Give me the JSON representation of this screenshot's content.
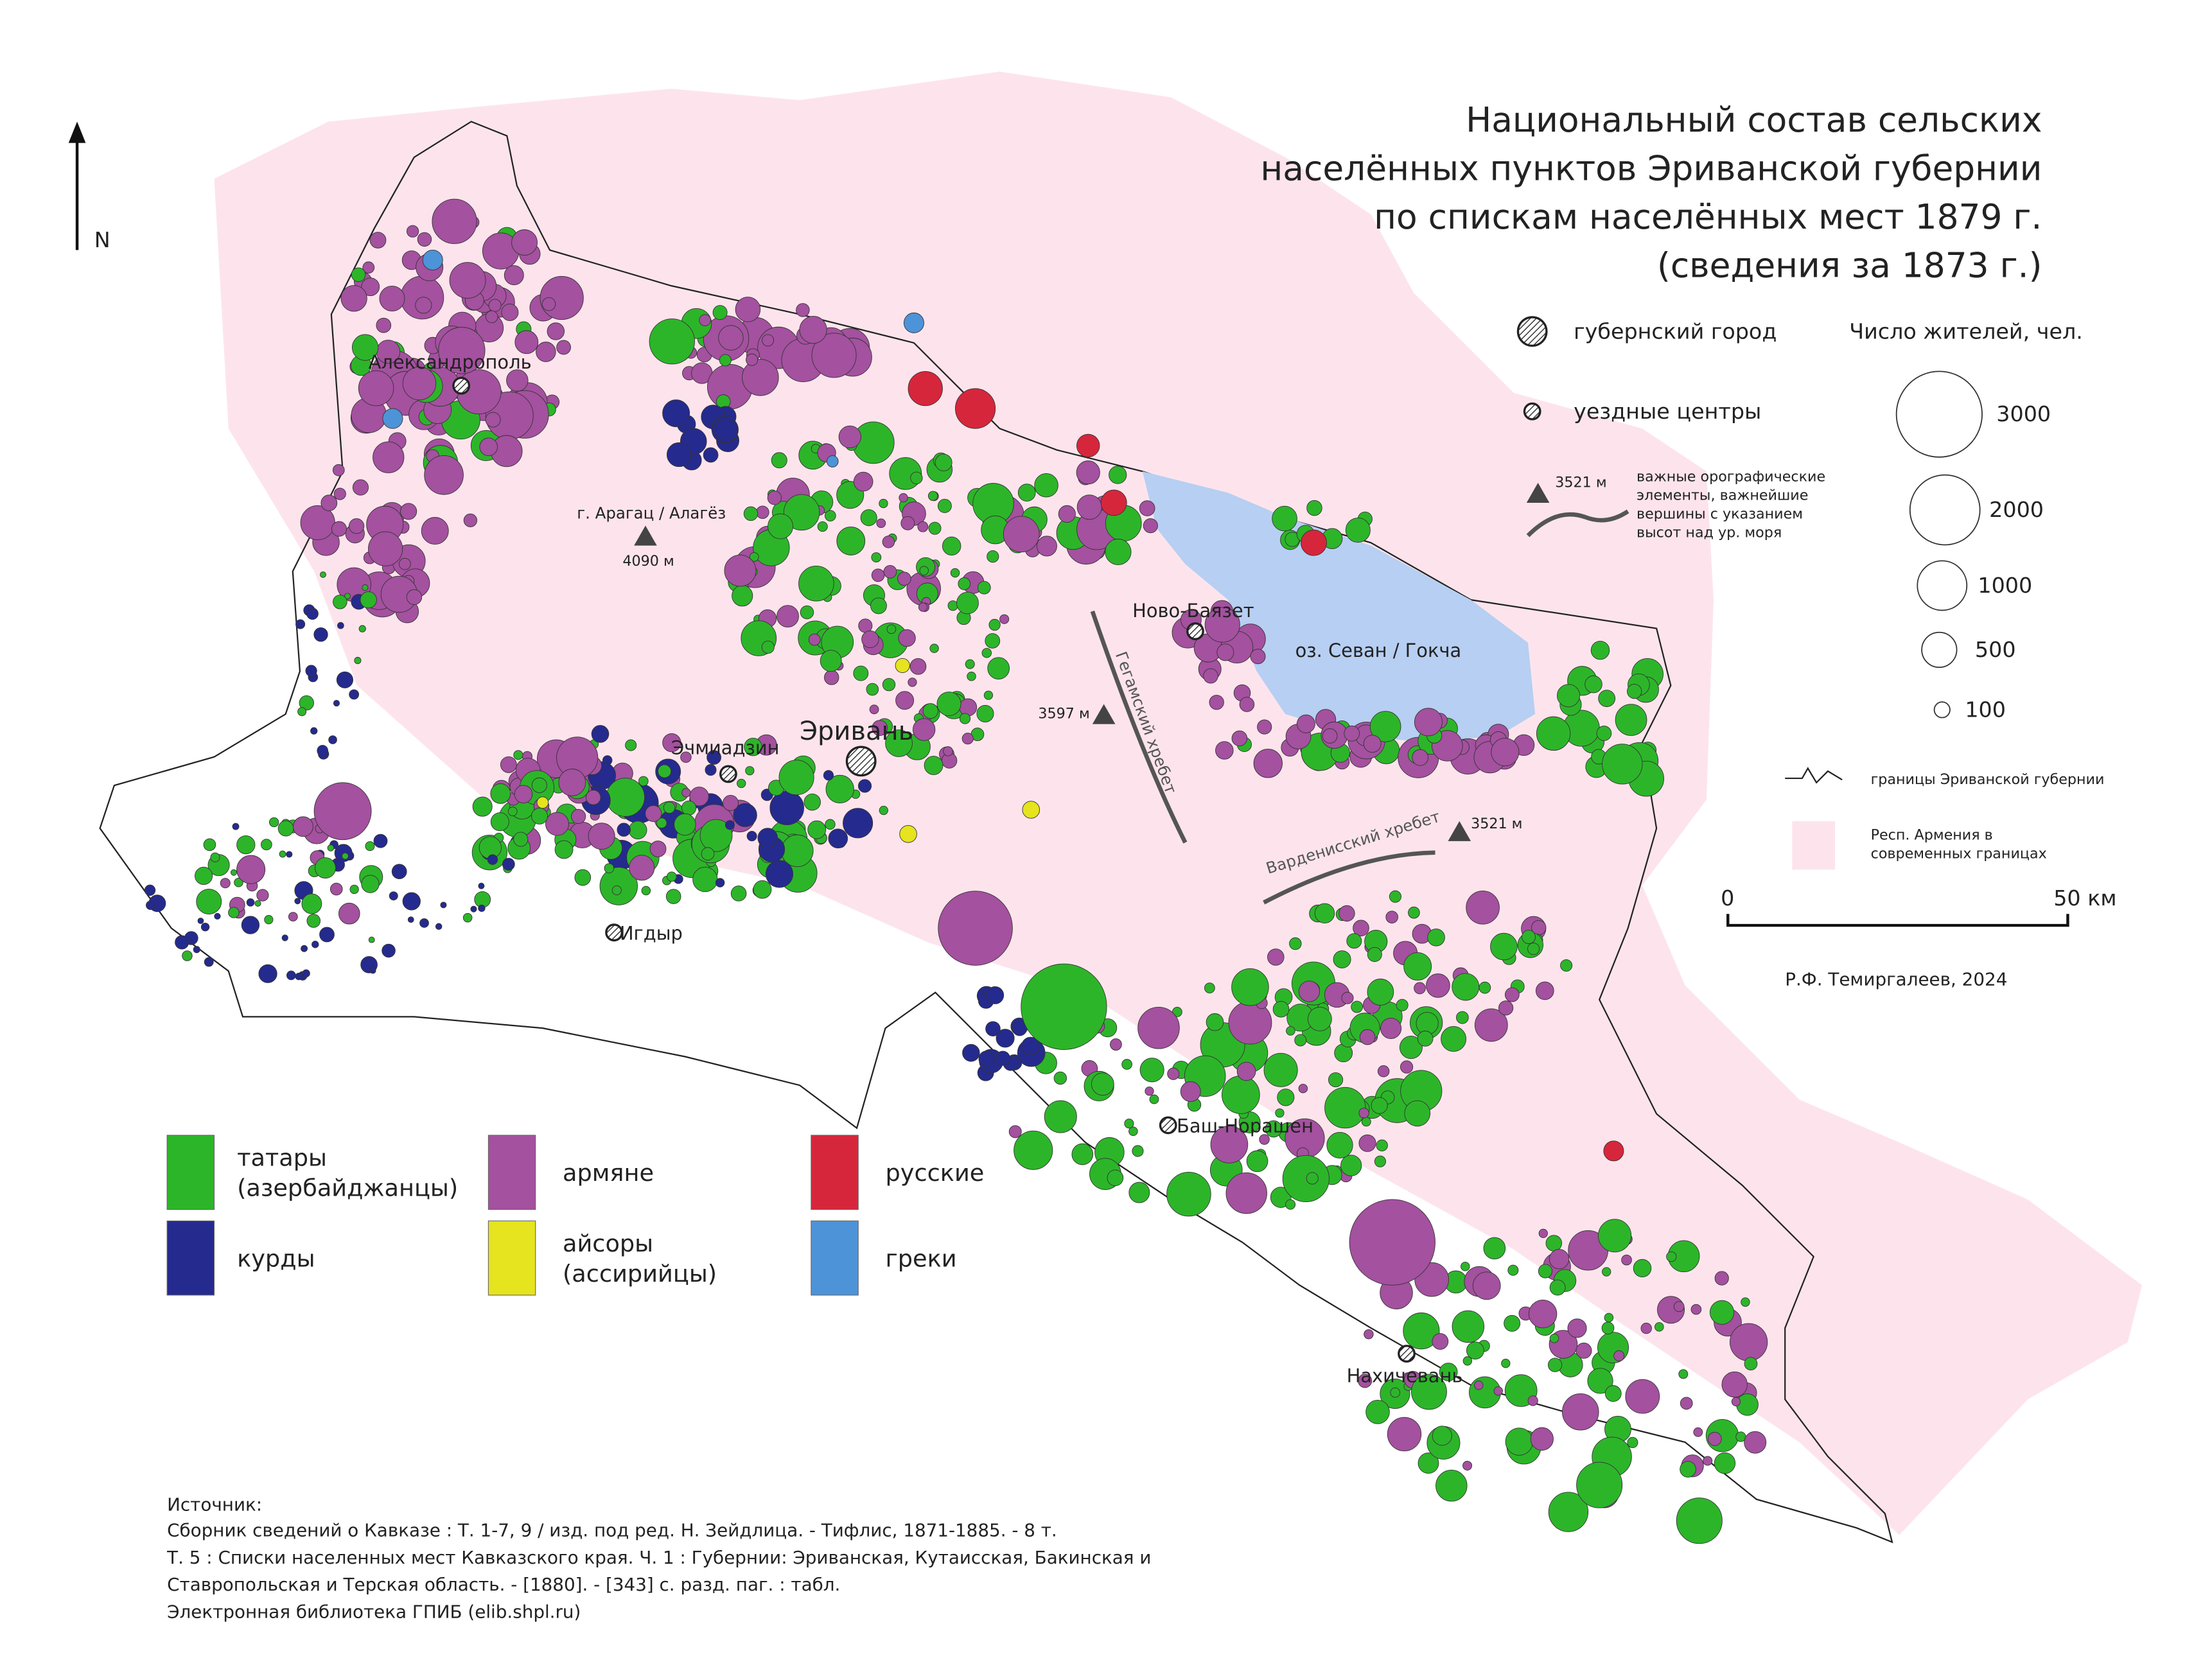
{
  "title": [
    "Национальный состав сельских",
    "населённых пунктов Эриванской губернии",
    "по спискам населённых мест 1879 г.",
    "(сведения за 1873 г.)"
  ],
  "north": "N",
  "legend": {
    "province_city": "губернский город",
    "district_centers": "уездные центры",
    "population_title": "Число жителей, чел.",
    "population_sizes": [
      3000,
      2000,
      1000,
      500,
      100
    ],
    "orography_height": "3521 м",
    "orography": [
      "важные орографические",
      "элементы, важнейшие",
      "вершины с указанием",
      "высот над ур. моря"
    ],
    "borders": "границы Эриванской губернии",
    "armenia": [
      "Респ. Армения в",
      "современных границах"
    ]
  },
  "ethnic_groups": [
    {
      "label": [
        "татары",
        "(азербайджанцы)"
      ],
      "color": "#2db52a"
    },
    {
      "label": [
        "курды"
      ],
      "color": "#252a8e"
    },
    {
      "label": [
        "армяне"
      ],
      "color": "#a4519f"
    },
    {
      "label": [
        "айсоры",
        "(ассирийцы)"
      ],
      "color": "#e6e31f"
    },
    {
      "label": [
        "русские"
      ],
      "color": "#d6263c"
    },
    {
      "label": [
        "греки"
      ],
      "color": "#4d93d8"
    }
  ],
  "places": [
    "Александрополь",
    "г. Арагац / Алагёз",
    "4090 м",
    "Эривань",
    "Эчмиадзин",
    "Игдыр",
    "Ново-Баязет",
    "оз. Севан / Гокча",
    "3597 м",
    "Гегамский хребет",
    "Варденисский хребет",
    "3521 м",
    "Баш-Норашен",
    "Нахичевань"
  ],
  "scale": [
    "0",
    "50 км"
  ],
  "author": "Р.Ф. Темиргалеев, 2024",
  "source": [
    "Источник:",
    "Сборник сведений о Кавказе : Т. 1-7, 9 / изд. под ред. Н. Зейдлица. - Тифлис, 1871-1885. - 8 т.",
    "Т. 5 : Списки населенных мест Кавказского края. Ч. 1 : Губернии: Эриванская, Кутаисская, Бакинская и",
    "Ставропольская и Терская область. - [1880]. - [343] с. разд. паг. : табл.",
    "Электронная библиотека ГПИБ (elib.shpl.ru)"
  ]
}
